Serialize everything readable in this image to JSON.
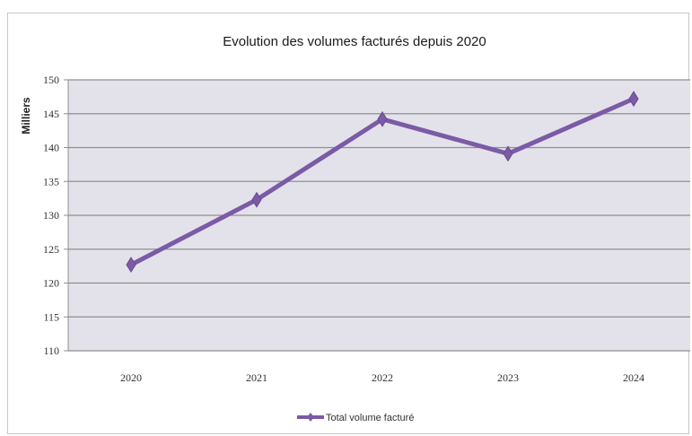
{
  "chart_data": {
    "type": "line",
    "title": "Evolution des volumes facturés depuis 2020",
    "xlabel": "",
    "ylabel": "Milliers",
    "categories": [
      "2020",
      "2021",
      "2022",
      "2023",
      "2024"
    ],
    "series": [
      {
        "name": "Total volume facturé",
        "values": [
          122.7,
          132.3,
          144.2,
          139.1,
          147.2
        ],
        "color": "#7b5aa6"
      }
    ],
    "ylim": [
      110,
      150
    ],
    "yticks": [
      "110",
      "115",
      "120",
      "125",
      "130",
      "135",
      "140",
      "145",
      "150"
    ],
    "grid": true,
    "plot_background": "#e3e2ea",
    "legend_position": "bottom-center"
  }
}
